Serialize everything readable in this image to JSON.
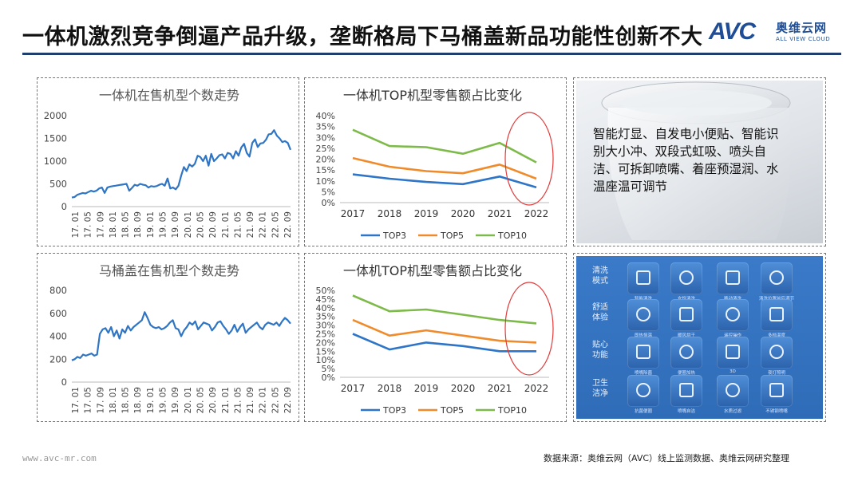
{
  "header": {
    "title": "一体机激烈竞争倒逼产品升级，垄断格局下马桶盖新品功能性创新不大",
    "logo_main": "AVC",
    "logo_cn": "奥维云网",
    "logo_en": "ALL VIEW CLOUD"
  },
  "feature_panel": {
    "text": "智能灯显、自发电小便贴、智能识别大小冲、双段式虹吸、喷头自洁、可拆卸喷嘴、着座预湿润、水温座温可调节"
  },
  "function_grid": {
    "categories": [
      "清洗\n模式",
      "舒适\n体验",
      "贴心\n功能",
      "卫生\n洁净"
    ],
    "item_labels": [
      [
        "智能清洗",
        "女性清洗",
        "移动清洗",
        "清洗位置前后调节"
      ],
      [
        "即热恒温",
        "暖风烘干",
        "遥控操作",
        "多档温度"
      ],
      [
        "喷嘴除菌",
        "便圈加热",
        "3D",
        "夜灯照明"
      ],
      [
        "抗菌便圈",
        "喷嘴自洁",
        "水质过滤",
        "不锈钢喷嘴"
      ]
    ],
    "icons": [
      [
        "spray-icon",
        "female-wash-icon",
        "nozzle-icon",
        "nozzle-adjust-icon"
      ],
      [
        "heater-icon",
        "dryer-icon",
        "remote-icon",
        "thermometer-icon"
      ],
      [
        "uv-nozzle-icon",
        "seat-icon",
        "3d-icon",
        "lamp-icon"
      ],
      [
        "sha-icon",
        "self-clean-icon",
        "filter-icon",
        "steel-nozzle-icon"
      ]
    ]
  },
  "footer": {
    "url": "www.avc-mr.com",
    "source": "数据来源：奥维云网（AVC）线上监测数据、奥维云网研究整理"
  },
  "chart_data": [
    {
      "type": "line",
      "title": "一体机在售机型个数走势",
      "ylim": [
        0,
        2000
      ],
      "yticks": [
        "0",
        "500",
        "1000",
        "1500",
        "2000"
      ],
      "xticks": [
        "17. 01",
        "17. 05",
        "17. 09",
        "18. 01",
        "18. 05",
        "18. 09",
        "19. 01",
        "19. 05",
        "19. 09",
        "20. 01",
        "20. 05",
        "20. 09",
        "21. 01",
        "21. 05",
        "21. 09",
        "22. 01",
        "22. 05",
        "22. 09"
      ],
      "color": "#2f75c4",
      "values": [
        200,
        210,
        260,
        280,
        300,
        290,
        320,
        350,
        330,
        350,
        400,
        420,
        300,
        420,
        440,
        450,
        460,
        470,
        480,
        490,
        500,
        350,
        410,
        480,
        460,
        500,
        480,
        470,
        420,
        450,
        440,
        450,
        480,
        500,
        460,
        620,
        400,
        420,
        380,
        460,
        680,
        870,
        780,
        930,
        880,
        940,
        1120,
        1090,
        1000,
        1120,
        900,
        1160,
        1000,
        1060,
        1130,
        1150,
        1060,
        1180,
        1160,
        1060,
        1220,
        1120,
        1300,
        1380,
        1180,
        1100,
        1400,
        1480,
        1310,
        1390,
        1400,
        1470,
        1590,
        1600,
        1680,
        1560,
        1500,
        1420,
        1440,
        1400,
        1250
      ]
    },
    {
      "type": "line",
      "title": "一体机TOP机型零售额占比变化",
      "categories": [
        "2017",
        "2018",
        "2019",
        "2020",
        "2021",
        "2022"
      ],
      "ylim": [
        0,
        40
      ],
      "yticks": [
        "0%",
        "5%",
        "10%",
        "15%",
        "20%",
        "25%",
        "30%",
        "35%",
        "40%"
      ],
      "series": [
        {
          "name": "TOP3",
          "color": "#2e75c8",
          "values": [
            13.0,
            11.0,
            9.5,
            8.5,
            12.0,
            7.0
          ]
        },
        {
          "name": "TOP5",
          "color": "#f08b2c",
          "values": [
            20.5,
            16.5,
            14.5,
            13.5,
            17.5,
            11.0
          ]
        },
        {
          "name": "TOP10",
          "color": "#7dba4a",
          "values": [
            33.5,
            26.0,
            25.5,
            22.5,
            27.5,
            18.5
          ]
        }
      ]
    },
    {
      "type": "line",
      "title": "马桶盖在售机型个数走势",
      "ylim": [
        0,
        800
      ],
      "yticks": [
        "0",
        "200",
        "400",
        "600",
        "800"
      ],
      "xticks": [
        "17. 01",
        "17. 05",
        "17. 09",
        "18. 01",
        "18. 05",
        "18. 09",
        "19. 01",
        "19. 05",
        "19. 09",
        "20. 01",
        "20. 05",
        "20. 09",
        "21. 01",
        "21. 05",
        "21. 09",
        "22. 01",
        "22. 05",
        "22. 09"
      ],
      "color": "#2f75c4",
      "values": [
        190,
        200,
        220,
        210,
        240,
        230,
        240,
        250,
        230,
        240,
        420,
        460,
        470,
        430,
        480,
        400,
        450,
        380,
        460,
        430,
        490,
        450,
        480,
        500,
        520,
        540,
        610,
        560,
        500,
        480,
        470,
        480,
        460,
        470,
        490,
        520,
        540,
        470,
        460,
        400,
        450,
        480,
        520,
        500,
        530,
        460,
        490,
        520,
        510,
        500,
        450,
        480,
        520,
        530,
        490,
        460,
        420,
        450,
        500,
        440,
        480,
        510,
        430,
        460,
        480,
        500,
        520,
        480,
        460,
        500,
        520,
        510,
        500,
        520,
        490,
        530,
        560,
        540,
        510
      ]
    },
    {
      "type": "line",
      "title": "一体机TOP机型零售额占比变化",
      "categories": [
        "2017",
        "2018",
        "2019",
        "2020",
        "2021",
        "2022"
      ],
      "ylim": [
        0,
        50
      ],
      "yticks": [
        "0%",
        "5%",
        "10%",
        "15%",
        "20%",
        "25%",
        "30%",
        "35%",
        "40%",
        "45%",
        "50%"
      ],
      "series": [
        {
          "name": "TOP3",
          "color": "#2e75c8",
          "values": [
            25.0,
            16.0,
            20.0,
            18.0,
            15.0,
            15.0
          ]
        },
        {
          "name": "TOP5",
          "color": "#f08b2c",
          "values": [
            33.0,
            24.0,
            27.0,
            24.0,
            21.0,
            20.0
          ]
        },
        {
          "name": "TOP10",
          "color": "#7dba4a",
          "values": [
            47.0,
            38.0,
            39.0,
            36.0,
            33.0,
            31.0
          ]
        }
      ]
    }
  ]
}
